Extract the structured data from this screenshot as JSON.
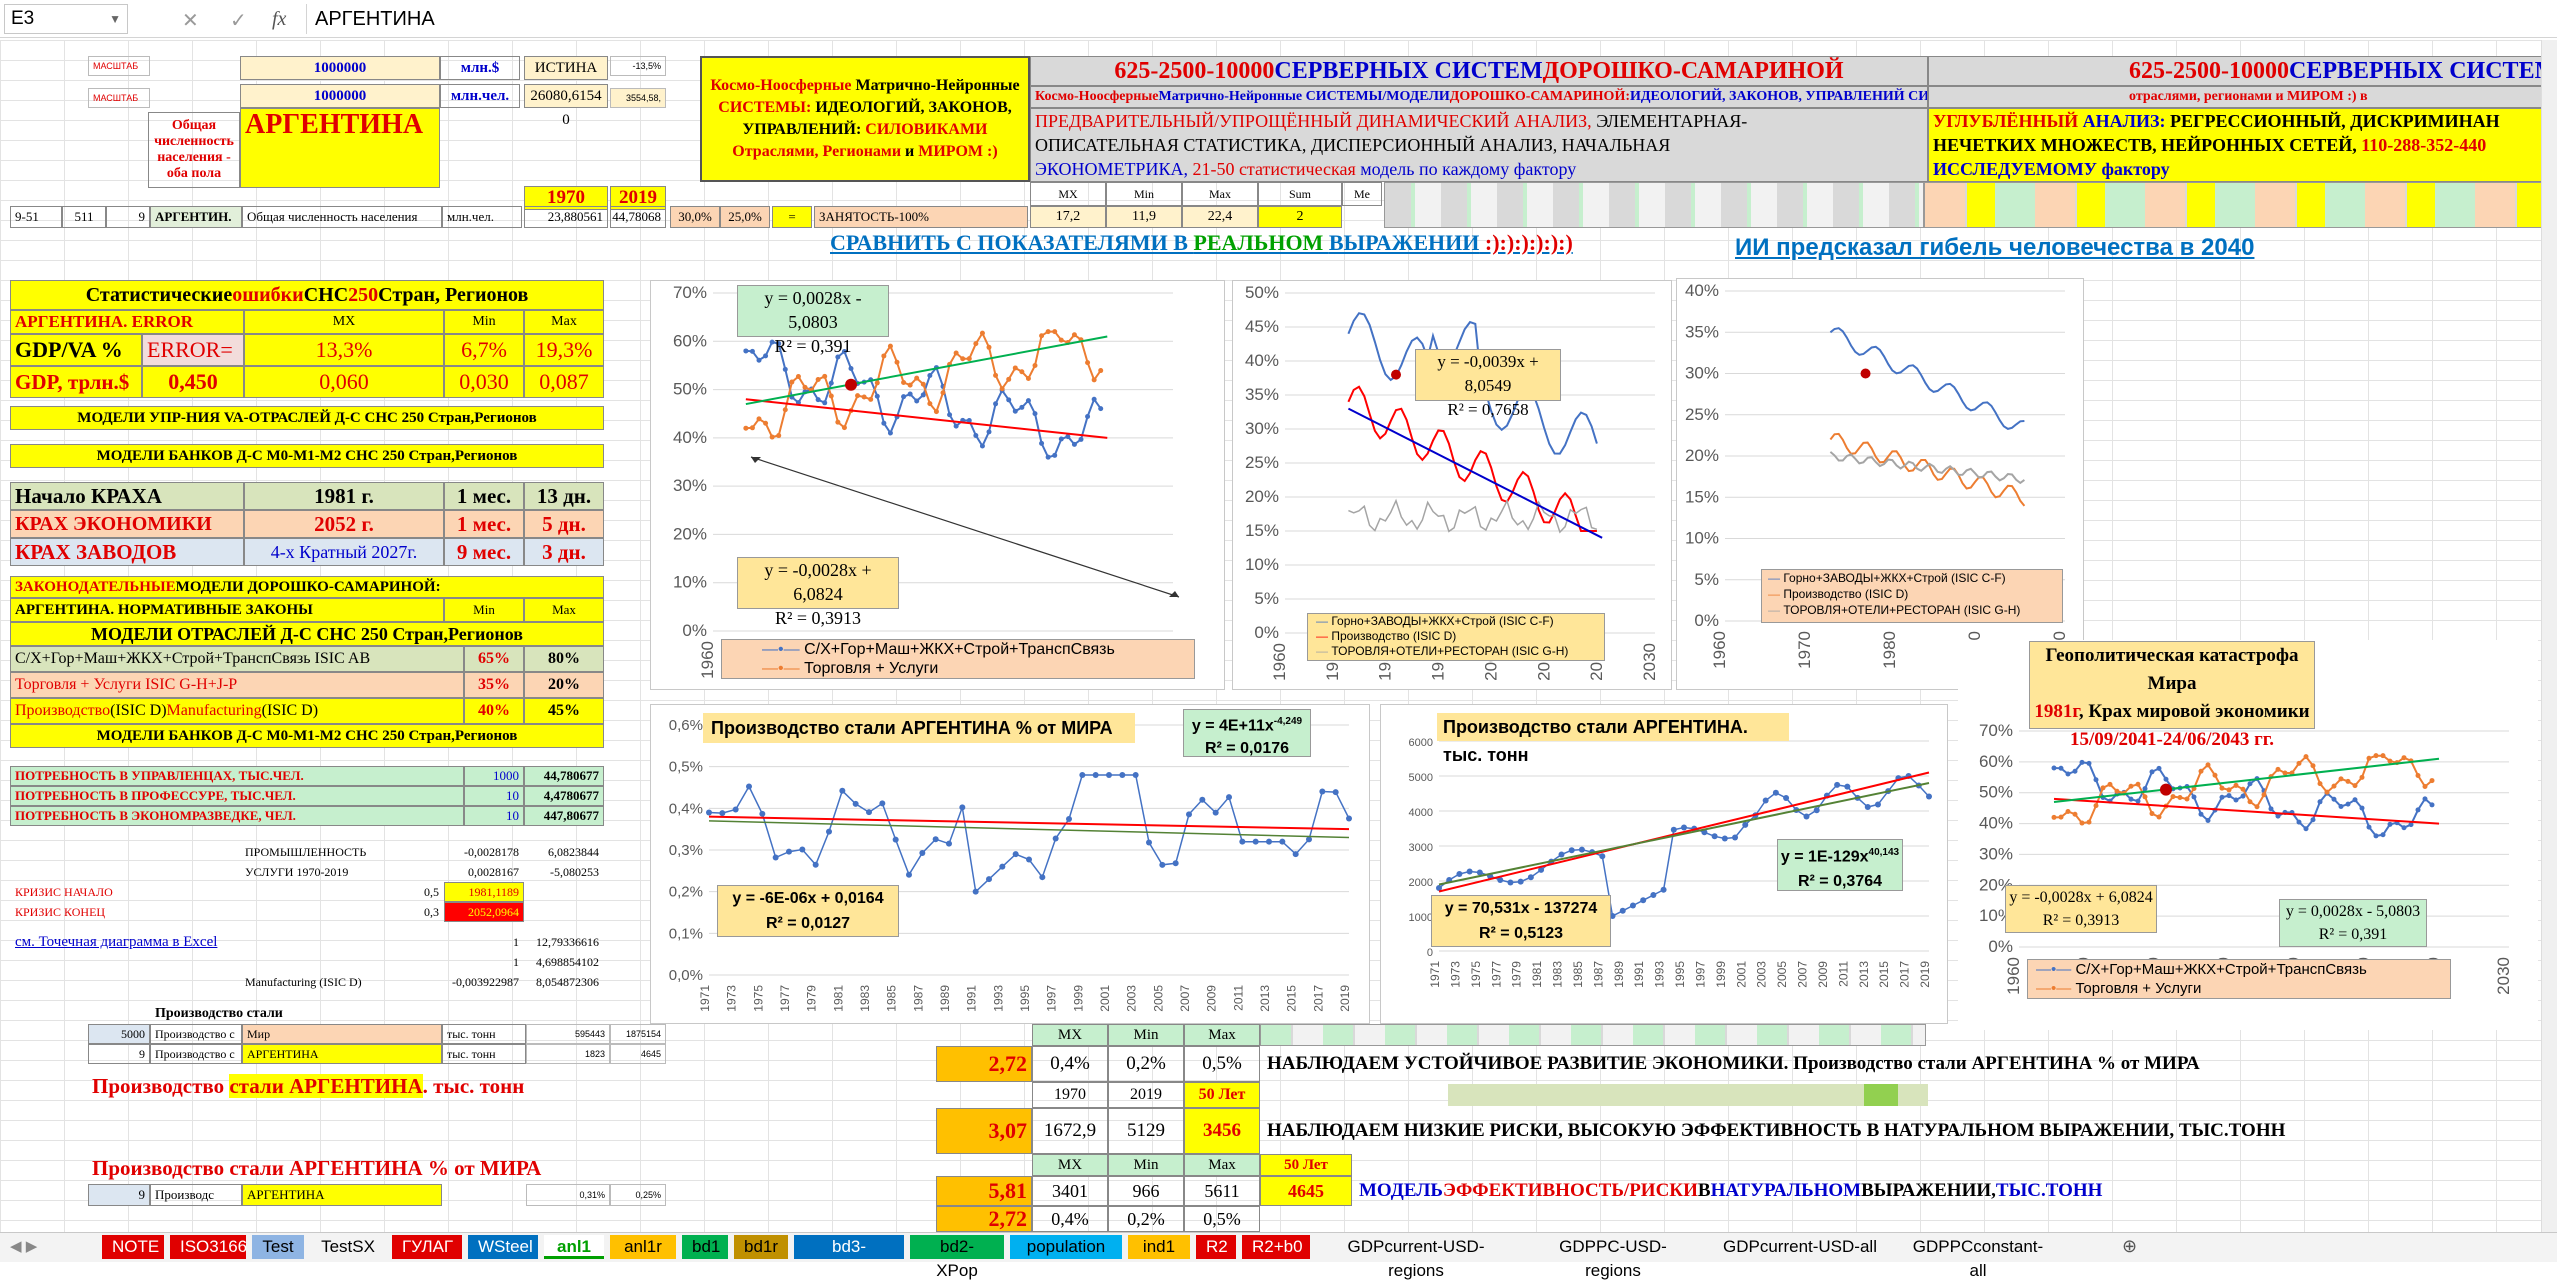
{
  "namebox": "E3",
  "formula": "АРГЕНТИНА",
  "fbtn": {
    "cancel": "✕",
    "enter": "✓",
    "fx": "fx"
  },
  "cells": {
    "masht1": "МАСШТАБ",
    "masht2": "МАСШТАБ",
    "v1000a": "1000000",
    "v1000b": "1000000",
    "mlnS": "млн.$",
    "mlnch": "млн.чел.",
    "istina": "ИСТИНА",
    "val26080": "26080,6154",
    "zero": "0",
    "neg135": "-13,5%",
    "v3554": "3554,58,",
    "obshch": "Общая численность населения - оба пола",
    "country": "АРГЕНТИНА",
    "y1970": "1970",
    "y2019": "2019",
    "r951": "9-51",
    "r511": "511",
    "r9": "9",
    "rname": "АРГЕНТИН.",
    "rdesc": "Общая численность населения",
    "rmln": "млн.чел.",
    "rv1": "23,880561",
    "rv2": "44,78068",
    "p30": "30,0%",
    "p25": "25,0%",
    "eq": "=",
    "zan": "ЗАНЯТОСТЬ-100%",
    "stmx": "17,2",
    "stmin": "11,9",
    "stmax": "22,4",
    "stn": "2",
    "hMX": "MX",
    "hMin": "Min",
    "hMax": "Max",
    "hSum": "Sum",
    "hMe": "Me"
  },
  "kosmo": {
    "w1": "Космо-Ноосферные",
    "w2": " Матрично-Нейронные ",
    "w3": "СИСТЕМЫ:",
    "w4": " ИДЕОЛОГИЙ, ЗАКОНОВ, УПРАВЛЕНИЙ: ",
    "w5": "СИЛОВИКАМИ Отраслями, Регионами",
    "w6": " и ",
    "w7": "МИРОМ :)"
  },
  "banner": {
    "t1": "625-2500-10000 ",
    "t2": "СЕРВЕРНЫХ СИСТЕМ ",
    "t3": "ДОРОШКО-САМАРИНОЙ",
    "s1": "Космо-Ноосферные ",
    "s2": "Матрично-Нейронные СИСТЕМЫ/МОДЕЛИ ",
    "s3": "ДОРОШКО-САМАРИНОЙ: ",
    "s4": "ИДЕОЛОГИЙ, ЗАКОНОВ, УПРАВЛЕНИЙ СИЛОВИКАМИ ",
    "s5": "отраслями, регионами и МИРОМ :) в",
    "p1": "ПРЕДВАРИТЕЛЬНЫЙ/УПРОЩЁННЫЙ ДИНАМИЧЕСКИЙ АНАЛИЗ, ",
    "p2": "ЭЛЕМЕНТАРНАЯ-",
    "p3": "ОПИСАТЕЛЬНАЯ СТАТИСТИКА, ДИСПЕРСИОННЫЙ АНАЛИЗ, НАЧАЛЬНАЯ",
    "p4": "ЭКОНОМЕТРИКА, ",
    "p5": "21-50 статистическая ",
    "p6": "модель по каждому фактору",
    "u1": "УГЛУБЛЁННЫЙ ",
    "u2": "АНАЛИЗ: ",
    "u3": "РЕГРЕССИОННЫЙ, ДИСКРИМИНАН",
    "u4": "НЕЧЕТКИХ МНОЖЕСТВ, НЕЙРОННЫХ СЕТЕЙ, ",
    "u5": "110-288-352-440",
    "u6": "ИССЛЕДУЕМОМУ фактору"
  },
  "compare": {
    "a": "СРАВНИТЬ С ПОКАЗАТЕЛЯМИ В ",
    "b": "РЕАЛЬНОМ ",
    "c": "ВЫРАЖЕНИИ",
    "d": " :):):):):):)"
  },
  "ai": "ИИ предсказал гибель человечества в 2040",
  "left": {
    "stat1": "Статистические ",
    "stat2": "ошибки ",
    "stat3": "СНС ",
    "stat4": "250 ",
    "stat5": "Стран, Регионов",
    "argErr": "АРГЕНТИНА. ERROR",
    "mx": "MX",
    "min": "Min",
    "max": "Max",
    "gdpva": "GDP/VA %",
    "errorq": "ERROR=",
    "e1": "13,3%",
    "e2": "6,7%",
    "e3": "19,3%",
    "gdp": "GDP, трлн.$",
    "g0": "0,450",
    "g1": "0,060",
    "g2": "0,030",
    "g3": "0,087",
    "modUpr": "МОДЕЛИ УПР-НИЯ VA-ОТРАСЛЕЙ Д-С СНС 250 Стран,Регионов",
    "modBank": "МОДЕЛИ БАНКОВ Д-С M0-M1-M2 СНС 250 Стран,Регионов",
    "nach": "Начало КРАХА",
    "n1": "1981 г.",
    "n2": "1 мес.",
    "n3": "13 дн.",
    "krE": "КРАХ ЭКОНОМИКИ",
    "k1": "2052 г.",
    "k2": "1 мес.",
    "k3": "5 дн.",
    "krZ": "КРАХ ЗАВОДОВ",
    "z1": "4-х Кратный 2027г.",
    "z2": "9 мес.",
    "z3": "3 дн.",
    "zak1": "ЗАКОНОДАТЕЛЬНЫЕ ",
    "zak2": "МОДЕЛИ ДОРОШКО-САМАРИНОЙ:",
    "norm": "АРГЕНТИНА. НОРМАТИВНЫЕ ЗАКОНЫ",
    "modOtr": "МОДЕЛИ ОТРАСЛЕЙ Д-С СНС 250 Стран,Регионов",
    "o1": "С/Х+Гор+Маш+ЖКХ+Строй+ТранспСвязь ISIC AB",
    "o1a": "65%",
    "o1b": "80%",
    "o2": "Торговля + Услуги ISIC G-H+J-P",
    "o2a": "35%",
    "o2b": "20%",
    "o3a": "Производство ",
    "o3b": "(ISIC D) ",
    "o3c": "Manufacturing ",
    "o3d": "(ISIC D)",
    "o3v1": "40%",
    "o3v2": "45%",
    "modBank2": "МОДЕЛИ БАНКОВ Д-С M0-M1-M2 СНС 250 Стран,Регионов",
    "pot1": "ПОТРЕБНОСТЬ В УПРАВЛЕНЦАХ, ТЫС.ЧЕЛ.",
    "pv1": "1000",
    "pr1": "44,780677",
    "pot2": "ПОТРЕБНОСТЬ В ПРОФЕССУРЕ, ТЫС.ЧЕЛ.",
    "pv2": "10",
    "pr2": "4,4780677",
    "pot3": "ПОТРЕБНОСТЬ В ЭКОНОМРАЗВЕДКЕ, ЧЕЛ.",
    "pv3": "10",
    "pr3": "447,80677",
    "prom": "ПРОМЫШЛЕННОСТЬ",
    "pm1": "-0,0028178",
    "pm2": "6,0823844",
    "usl": "УСЛУГИ 1970-2019",
    "us1": "0,0028167",
    "us2": "-5,080253",
    "krN": "КРИЗИС НАЧАЛО",
    "kn1": "0,5",
    "kn2": "1981,1189",
    "krK": "КРИЗИС КОНЕЦ",
    "kk1": "0,3",
    "kk2": "2052,0964",
    "scat": "см. Точечная диаграмма в Excel",
    "sc1": "1",
    "sc2": "12,79336616",
    "s41": "1",
    "s42": "4,698854102",
    "manu": "Manufacturing (ISIC D)",
    "mn1": "-0,003922987",
    "mn2": "8,054872306",
    "prst": "Производство стали",
    "st5000": "5000",
    "stProd1": "Производство с",
    "stMir": "Мир",
    "stTys": "тыс. тонн",
    "st1": "595443",
    "st2": "1875154",
    "st9": "9",
    "stProd2": "Производство с",
    "stArg": "АРГЕНТИНА",
    "stTys2": "тыс. тонн",
    "st3": "1823",
    "st4": "4645",
    "bigProd1": "Производство ",
    "bigProd2": "стали  АРГЕНТИНА",
    "bigProd3": ". тыс. тонн",
    "bigPct1": "Производство стали АРГЕНТИНА % от МИРА",
    "l9": "9",
    "lProd": "Производс",
    "lArg": "АРГЕНТИНА",
    "l31": "0,31%",
    "l25": "0,25%"
  },
  "bottom": {
    "mx": "MX",
    "min": "Min",
    "max": "Max",
    "r1a": "2,72",
    "r1b": "0,4%",
    "r1c": "0,2%",
    "r1d": "0,5%",
    "nab1": "НАБЛЮДАЕМ УСТОЙЧИВОЕ РАЗВИТИЕ ЭКОНОМИКИ. Производство стали АРГЕНТИНА % от МИРА",
    "y1970": "1970",
    "y2019": "2019",
    "y50": "50 Лет",
    "r2a": "3,07",
    "r2b": "1672,9",
    "r2c": "5129",
    "r2d": "3456",
    "nab2": "НАБЛЮДАЕМ НИЗКИЕ РИСКИ, ВЫСОКУЮ ЭФФЕКТИВНОСТЬ В НАТУРАЛЬНОМ ВЫРАЖЕНИИ, ТЫС.ТОНН",
    "mx2": "MX",
    "min2": "Min",
    "max2": "Max",
    "y502": "50 Лет",
    "r3a": "5,81",
    "r3b": "3401",
    "r3c": "966",
    "r3d": "5611",
    "r3e": "4645",
    "mod1": "МОДЕЛЬ ",
    "mod2": "ЭФФЕКТИВНОСТЬ/РИСКИ ",
    "mod3": "В ",
    "mod4": "НАТУРАЛЬНОМ ",
    "mod5": "ВЫРАЖЕНИИ, ",
    "mod6": "ТЫС.ТОНН",
    "r4a": "2,72",
    "r4b": "0,4%",
    "r4c": "0,2%",
    "r4d": "0,5%"
  },
  "geo": {
    "l1": "Геополитическая катастрофа Мира",
    "l2a": "1981г",
    "l2b": ", Крах мировой экономики",
    "l3": "15/09/2041-24/06/2043 гг."
  },
  "tabs": [
    {
      "label": "NOTE",
      "bg": "#e00000",
      "fg": "#ffffff"
    },
    {
      "label": "ISO3166",
      "bg": "#e00000",
      "fg": "#ffffff"
    },
    {
      "label": "Test",
      "bg": "#8eb4e3",
      "fg": "#000000"
    },
    {
      "label": "TestSX",
      "bg": "#f3f3f3",
      "fg": "#000000"
    },
    {
      "label": "ГУЛАГ",
      "bg": "#e00000",
      "fg": "#ffffff"
    },
    {
      "label": "WSteel",
      "bg": "#0070c0",
      "fg": "#ffffff"
    },
    {
      "label": "anl1",
      "bg": "#ffffff",
      "fg": "#00a000"
    },
    {
      "label": "anl1r",
      "bg": "#ffc000",
      "fg": "#000000"
    },
    {
      "label": "bd1",
      "bg": "#00b050",
      "fg": "#000000"
    },
    {
      "label": "bd1r",
      "bg": "#c09000",
      "fg": "#000000"
    },
    {
      "label": "bd3-GDPPC",
      "bg": "#0070c0",
      "fg": "#ffffff"
    },
    {
      "label": "bd2-XPop",
      "bg": "#00b050",
      "fg": "#000000"
    },
    {
      "label": "population",
      "bg": "#00b0f0",
      "fg": "#000000"
    },
    {
      "label": "ind1",
      "bg": "#ffc000",
      "fg": "#000000"
    },
    {
      "label": "R2",
      "bg": "#e00000",
      "fg": "#ffffff"
    },
    {
      "label": "R2+b0",
      "bg": "#e00000",
      "fg": "#ffffff"
    },
    {
      "label": "GDPcurrent-USD-regions",
      "bg": "#f3f3f3",
      "fg": "#000000"
    },
    {
      "label": "GDPPC-USD-regions",
      "bg": "#f3f3f3",
      "fg": "#000000"
    },
    {
      "label": "GDPcurrent-USD-all",
      "bg": "#f3f3f3",
      "fg": "#000000"
    },
    {
      "label": "GDPPCconstant-all",
      "bg": "#f3f3f3",
      "fg": "#000000"
    }
  ],
  "chart_data": [
    {
      "type": "line",
      "id": "c1",
      "xlim": [
        1960,
        2030
      ],
      "ylim": [
        0,
        0.7
      ],
      "xticks": [
        "1960",
        "1970",
        "1980",
        "1990",
        "2000",
        "2010",
        "2020",
        "2030"
      ],
      "yticks": [
        "0%",
        "10%",
        "20%",
        "30%",
        "40%",
        "50%",
        "60%",
        "70%"
      ],
      "series": [
        {
          "name": "С/Х+Гор+Маш+ЖКХ+Строй+ТранспСвязь",
          "color": "#4472c4"
        },
        {
          "name": "Торговля + Услуги",
          "color": "#ed7d31"
        }
      ],
      "eq1": "y = 0,0028x - 5,0803",
      "r1": "R² = 0,391",
      "eq2": "y = -0,0028x + 6,0824",
      "r2": "R² = 0,3913"
    },
    {
      "type": "line",
      "id": "c2",
      "xlim": [
        1960,
        2030
      ],
      "ylim": [
        0,
        0.5
      ],
      "xticks": [
        "1960",
        "1970",
        "1980",
        "1990",
        "2000",
        "2010",
        "2020",
        "2030"
      ],
      "yticks": [
        "0%",
        "5%",
        "10%",
        "15%",
        "20%",
        "25%",
        "30%",
        "35%",
        "40%",
        "45%",
        "50%"
      ],
      "series": [
        {
          "name": "Горно+ЗАВОДЫ+ЖКХ+Строй (ISIC C-F)",
          "color": "#4472c4"
        },
        {
          "name": "Производство (ISIC D)",
          "color": "#ff0000"
        },
        {
          "name": "ТОРОВЛЯ+ОТЕЛИ+РЕСТОРАН (ISIC G-H)",
          "color": "#a5a5a5"
        }
      ],
      "eq": "y = -0,0039x + 8,0549",
      "r": "R² = 0,7658"
    },
    {
      "type": "line",
      "id": "c3",
      "xlim": [
        1960,
        2000
      ],
      "ylim": [
        0,
        0.4
      ],
      "xticks": [
        "1960",
        "1970",
        "1980",
        "1990",
        "2000"
      ],
      "yticks": [
        "0%",
        "5%",
        "10%",
        "15%",
        "20%",
        "25%",
        "30%",
        "35%",
        "40%"
      ],
      "series": [
        {
          "name": "Горно+ЗАВОДЫ+ЖКХ+Строй (ISIC C-F)",
          "color": "#4472c4"
        },
        {
          "name": "Производство (ISIC D)",
          "color": "#ed7d31"
        },
        {
          "name": "ТОРОВЛЯ+ОТЕЛИ+РЕСТОРАН (ISIC G-H)",
          "color": "#a5a5a5"
        }
      ]
    },
    {
      "type": "line",
      "id": "c4",
      "title": "Производство стали АРГЕНТИНА % от МИРА",
      "ylim": [
        0,
        0.006
      ],
      "x": [
        "1971",
        "1973",
        "1975",
        "1977",
        "1979",
        "1981",
        "1983",
        "1985",
        "1987",
        "1989",
        "1991",
        "1993",
        "1995",
        "1997",
        "1999",
        "2001",
        "2003",
        "2005",
        "2007",
        "2009",
        "2011",
        "2013",
        "2015",
        "2017",
        "2019"
      ],
      "yticks": [
        "0,0%",
        "0,1%",
        "0,2%",
        "0,3%",
        "0,4%",
        "0,5%",
        "0,6%"
      ],
      "eq1": "y = 4E+11x",
      "eq1sup": "-4,249",
      "r1": "R² = 0,0176",
      "eq2": "y = -6E-06x + 0,0164",
      "r2": "R² = 0,0127"
    },
    {
      "type": "line",
      "id": "c5",
      "title": "Производство стали  АРГЕНТИНА. тыс. тонн",
      "ylim": [
        0,
        6000
      ],
      "x": [
        "1971",
        "1973",
        "1975",
        "1977",
        "1979",
        "1981",
        "1983",
        "1985",
        "1987",
        "1989",
        "1991",
        "1993",
        "1995",
        "1997",
        "1999",
        "2001",
        "2003",
        "2005",
        "2007",
        "2009",
        "2011",
        "2013",
        "2015",
        "2017",
        "2019"
      ],
      "yticks": [
        "0",
        "1000",
        "2000",
        "3000",
        "4000",
        "5000",
        "6000"
      ],
      "eq1": "y = 1E-129x",
      "eq1sup": "40,143",
      "r1": "R² = 0,3764",
      "eq2": "y = 70,531x - 137274",
      "r2": "R² = 0,5123"
    },
    {
      "type": "line",
      "id": "c6",
      "xlim": [
        1960,
        2030
      ],
      "ylim": [
        0,
        0.7
      ],
      "xticks": [
        "1960",
        "1970",
        "1980",
        "1990",
        "2000",
        "2010",
        "2020",
        "2030"
      ],
      "yticks": [
        "0%",
        "10%",
        "20%",
        "30%",
        "40%",
        "50%",
        "60%",
        "70%"
      ],
      "series": [
        {
          "name": "С/Х+Гор+Маш+ЖКХ+Строй+ТранспСвязь",
          "color": "#4472c4"
        },
        {
          "name": "Торговля + Услуги",
          "color": "#ed7d31"
        }
      ],
      "eq1": "y = -0,0028x + 6,0824",
      "r1": "R² = 0,3913",
      "eq2": "y = 0,0028x - 5,0803",
      "r2": "R² = 0,391"
    }
  ]
}
